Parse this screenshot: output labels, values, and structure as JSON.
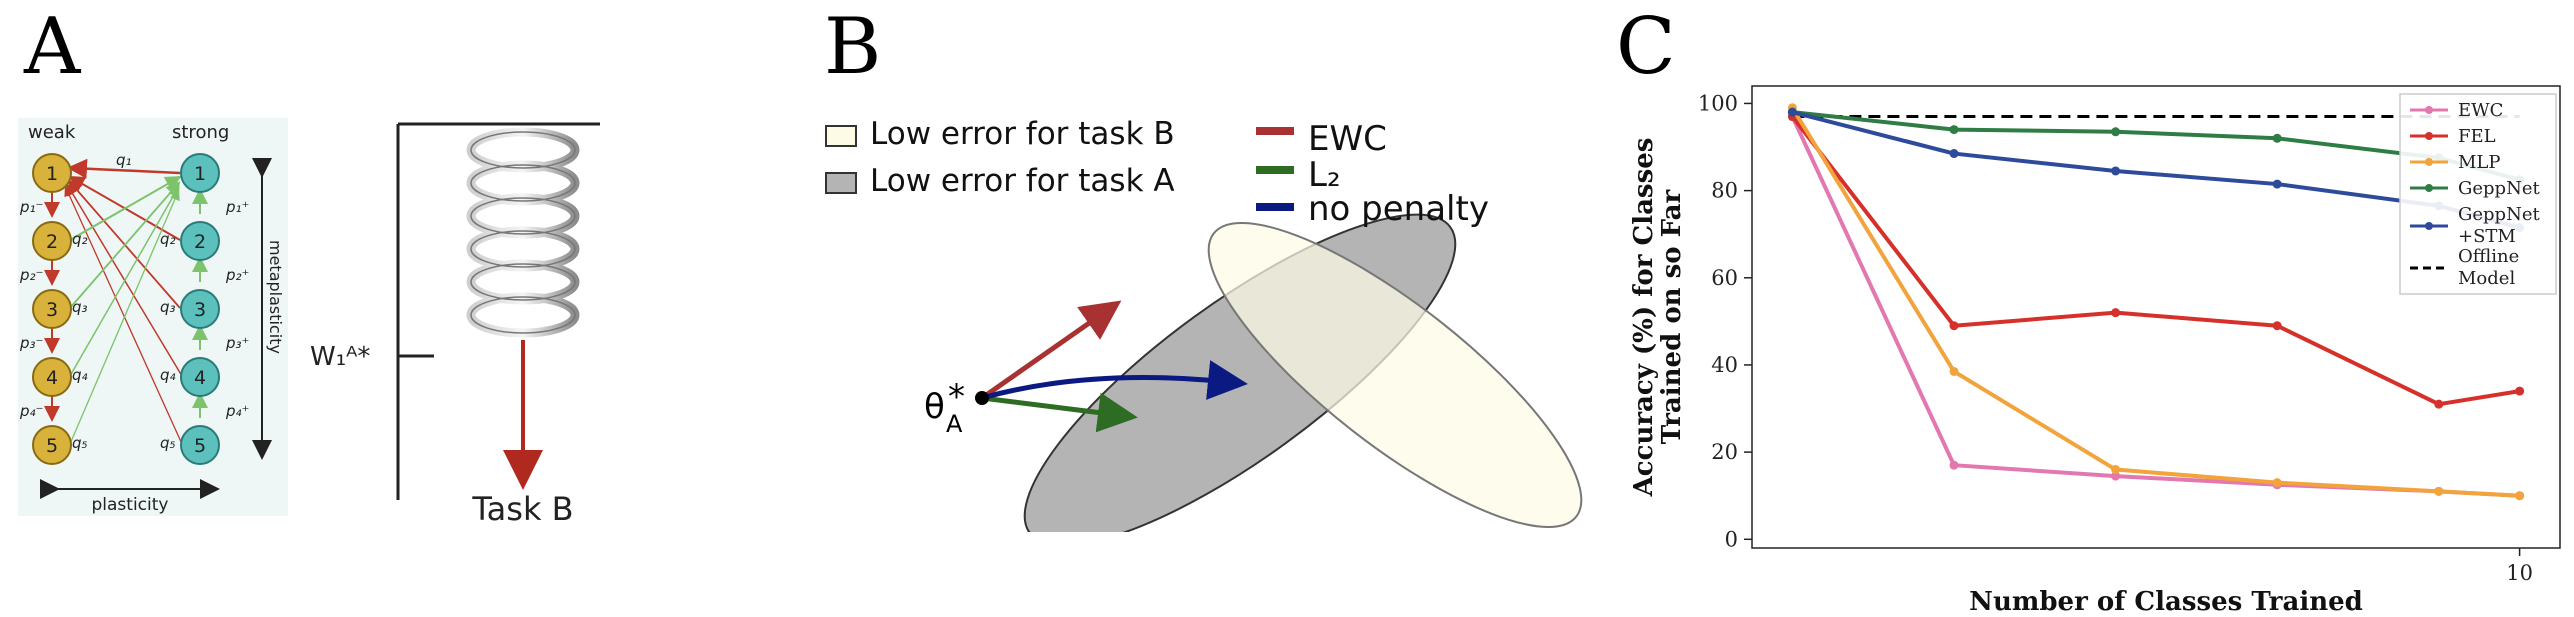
{
  "panels": {
    "a": {
      "letter": "A"
    },
    "b": {
      "letter": "B"
    },
    "c": {
      "letter": "C"
    }
  },
  "panel_a": {
    "col_weak": "weak",
    "col_strong": "strong",
    "nodes": [
      "1",
      "2",
      "3",
      "4",
      "5"
    ],
    "weak_probs": [
      "p₁⁻",
      "p₂⁻",
      "p₃⁻",
      "p₄⁻"
    ],
    "strong_probs": [
      "p₁⁺",
      "p₂⁺",
      "p₃⁺",
      "p₄⁺"
    ],
    "q_left": [
      "q₁",
      "q₂",
      "q₃",
      "q₄",
      "q₅"
    ],
    "q_right": [
      "q₁",
      "q₂",
      "q₃",
      "q₄",
      "q₅"
    ],
    "metaplasticity_label": "metaplasticity",
    "plasticity_label": "plasticity",
    "weight_label": "W₁ᴬ*",
    "task_label": "Task B",
    "colors": {
      "weak_node": "#d8b23a",
      "strong_node": "#5cc1bd",
      "arrow_red": "#c0392b",
      "arrow_green": "#7cc36b"
    }
  },
  "panel_b": {
    "legend_low_b": "Low error for task B",
    "legend_low_a": "Low error for task A",
    "legend_ewc": "EWC",
    "legend_l2": "L₂",
    "legend_nopenalty": "no penalty",
    "theta_symbol": "θ",
    "theta_sub": "A",
    "theta_star": "*",
    "colors": {
      "ewc": "#a83232",
      "l2": "#2e6b23",
      "nopenalty": "#0a1a80",
      "task_b_fill": "#fdfbe6",
      "task_a_fill": "#b4b4b4"
    }
  },
  "chart_data": {
    "type": "line",
    "xlabel": "Number of Classes Trained",
    "ylabel_line1": "Accuracy (%) for Classes",
    "ylabel_line2": "Trained on so Far",
    "x": [
      1,
      2,
      3,
      4,
      5,
      6,
      7,
      8,
      9,
      10
    ],
    "xlim": [
      0.5,
      10.5
    ],
    "ylim": [
      -2,
      104
    ],
    "x_ticks": [
      "10"
    ],
    "y_ticks": [
      "0",
      "20",
      "40",
      "60",
      "80",
      "100"
    ],
    "y_tick_values": [
      0,
      20,
      40,
      60,
      80,
      100
    ],
    "series": [
      {
        "name": "EWC",
        "color": "#e377b0",
        "x": [
          1,
          3,
          5,
          7,
          9,
          10
        ],
        "values": [
          97,
          17,
          14.5,
          12.5,
          11,
          10
        ]
      },
      {
        "name": "FEL",
        "color": "#d6302b",
        "x": [
          1,
          3,
          5,
          7,
          9,
          10
        ],
        "values": [
          97,
          49,
          52,
          49,
          31,
          34
        ]
      },
      {
        "name": "MLP",
        "color": "#f2a33c",
        "x": [
          1,
          3,
          5,
          7,
          9,
          10
        ],
        "values": [
          99,
          38.5,
          16,
          13,
          11,
          10
        ]
      },
      {
        "name": "GeppNet",
        "color": "#2f7d45",
        "x": [
          1,
          3,
          5,
          7,
          9,
          10
        ],
        "values": [
          98,
          94,
          93.5,
          92,
          87.5,
          82.5
        ]
      },
      {
        "name": "GeppNet +STM",
        "label_line1": "GeppNet",
        "label_line2": "+STM",
        "color": "#2e4a9a",
        "x": [
          1,
          3,
          5,
          7,
          9,
          10
        ],
        "values": [
          98,
          88.5,
          84.5,
          81.5,
          76.5,
          71.5
        ]
      }
    ],
    "offline": {
      "name": "Offline Model",
      "label_line1": "Offline",
      "label_line2": "Model",
      "value": 97,
      "color": "#000000"
    },
    "legend_position": "top-right"
  }
}
